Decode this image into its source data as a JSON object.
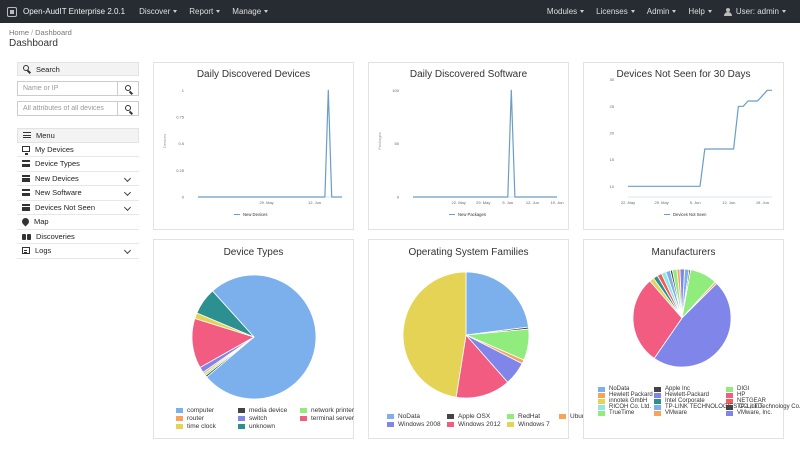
{
  "navbar": {
    "brand": "Open-AudIT Enterprise 2.0.1",
    "left": [
      "Discover",
      "Report",
      "Manage"
    ],
    "right": [
      "Modules",
      "Licenses",
      "Admin",
      "Help"
    ],
    "user": "User: admin"
  },
  "breadcrumb": {
    "home": "Home",
    "current": "Dashboard"
  },
  "page_title": "Dashboard",
  "sidebar": {
    "search_label": "Search",
    "name_placeholder": "Name or IP",
    "attr_placeholder": "All attributes of all devices",
    "menu_label": "Menu",
    "items": [
      {
        "label": "My Devices",
        "icon": "monitor-icon",
        "expandable": false
      },
      {
        "label": "Device Types",
        "icon": "server-icon",
        "expandable": false
      },
      {
        "label": "New Devices",
        "icon": "server-icon",
        "expandable": true
      },
      {
        "label": "New Software",
        "icon": "server-icon",
        "expandable": true
      },
      {
        "label": "Devices Not Seen",
        "icon": "server-icon",
        "expandable": true
      },
      {
        "label": "Map",
        "icon": "map-marker-icon",
        "expandable": false
      },
      {
        "label": "Discoveries",
        "icon": "binoculars-icon",
        "expandable": false
      },
      {
        "label": "Logs",
        "icon": "list-icon",
        "expandable": true
      }
    ]
  },
  "line_color": "#6a9ec5",
  "charts": [
    {
      "title": "Daily Discovered Devices",
      "chart_data": {
        "type": "line",
        "x": [
          "2017-05-09",
          "2017-05-14",
          "2017-05-19",
          "2017-05-24",
          "2017-05-29",
          "2017-06-03",
          "2017-06-08",
          "2017-06-12",
          "2017-06-15",
          "2017-06-16",
          "2017-06-17",
          "2017-06-20"
        ],
        "y": [
          0,
          0,
          0,
          0,
          0,
          0,
          0,
          0,
          0,
          1,
          0,
          0
        ],
        "yticks": [
          "0",
          "0.25",
          "0.5",
          "0.75",
          "1"
        ],
        "ylim": [
          0,
          1.05
        ],
        "xticks": [
          {
            "x": "2017-05-29",
            "label": "29. May"
          },
          {
            "x": "2017-06-12",
            "label": "12. Jun"
          }
        ],
        "ylabel": "Devices",
        "legend": "New Devices"
      }
    },
    {
      "title": "Daily Discovered Software",
      "chart_data": {
        "type": "line",
        "x": [
          "2017-05-09",
          "2017-05-14",
          "2017-05-19",
          "2017-05-24",
          "2017-05-29",
          "2017-06-03",
          "2017-06-05",
          "2017-06-06",
          "2017-06-07",
          "2017-06-12",
          "2017-06-16",
          "2017-06-19"
        ],
        "y": [
          0,
          0,
          0,
          0,
          0,
          0,
          0,
          100,
          0,
          0,
          0,
          0
        ],
        "yticks": [
          "0",
          "50",
          "100"
        ],
        "ylim": [
          0,
          105
        ],
        "xticks": [
          {
            "x": "2017-05-22",
            "label": "22. May"
          },
          {
            "x": "2017-05-29",
            "label": "29. May"
          },
          {
            "x": "2017-06-05",
            "label": "5. Jun"
          },
          {
            "x": "2017-06-12",
            "label": "12. Jun"
          },
          {
            "x": "2017-06-19",
            "label": "19. Jun"
          }
        ],
        "ylabel": "Packages",
        "legend": "New Packages"
      }
    },
    {
      "title": "Devices Not Seen for 30 Days",
      "chart_data": {
        "type": "line",
        "x": [
          "2017-05-22",
          "2017-05-25",
          "2017-05-28",
          "2017-05-31",
          "2017-06-03",
          "2017-06-06",
          "2017-06-07",
          "2017-06-10",
          "2017-06-13",
          "2017-06-14",
          "2017-06-15",
          "2017-06-16",
          "2017-06-17",
          "2017-06-18",
          "2017-06-19",
          "2017-06-20",
          "2017-06-21"
        ],
        "y": [
          10,
          10,
          10,
          10,
          10,
          10,
          17,
          17,
          17,
          25,
          25,
          26,
          26,
          26,
          27,
          28,
          28
        ],
        "yticks": [
          "10",
          "15",
          "20",
          "25",
          "30"
        ],
        "ylim": [
          8,
          29
        ],
        "xticks": [
          {
            "x": "2017-05-22",
            "label": "22. May"
          },
          {
            "x": "2017-05-29",
            "label": "29. May"
          },
          {
            "x": "2017-06-05",
            "label": "5. Jun"
          },
          {
            "x": "2017-06-12",
            "label": "12. Jun"
          },
          {
            "x": "2017-06-19",
            "label": "19. Jun"
          }
        ],
        "legend": "Devices Not Seen"
      }
    }
  ],
  "pies": [
    {
      "title": "Device Types",
      "chart_data": {
        "type": "pie",
        "slices": [
          {
            "name": "computer",
            "value": 75.5,
            "color": "#7cb0ec"
          },
          {
            "name": "media device",
            "value": 0.5,
            "color": "#434348"
          },
          {
            "name": "network printer",
            "value": 0.5,
            "color": "#90ed7d"
          },
          {
            "name": "router",
            "value": 0.5,
            "color": "#f7a35c"
          },
          {
            "name": "switch",
            "value": 1.5,
            "color": "#8085e9"
          },
          {
            "name": "terminal server",
            "value": 13,
            "color": "#f15c80"
          },
          {
            "name": "time clock",
            "value": 1.5,
            "color": "#e4d354"
          },
          {
            "name": "unknown",
            "value": 7,
            "color": "#2b908f"
          }
        ]
      }
    },
    {
      "title": "Operating System Families",
      "chart_data": {
        "type": "pie",
        "slices": [
          {
            "name": "NoData",
            "value": 23,
            "color": "#7cb0ec"
          },
          {
            "name": "Apple OSX",
            "value": 0.5,
            "color": "#434348"
          },
          {
            "name": "RedHat",
            "value": 8,
            "color": "#90ed7d"
          },
          {
            "name": "Ubuntu",
            "value": 1,
            "color": "#f7a35c"
          },
          {
            "name": "Windows 2008",
            "value": 6,
            "color": "#8085e9"
          },
          {
            "name": "Windows 2012",
            "value": 14,
            "color": "#f15c80"
          },
          {
            "name": "Windows 7",
            "value": 47.5,
            "color": "#e4d354"
          }
        ]
      }
    },
    {
      "title": "Manufacturers",
      "chart_data": {
        "type": "pie",
        "slices": [
          {
            "name": "NoData",
            "value": 1.5,
            "color": "#7cb0ec"
          },
          {
            "name": "Apple Inc",
            "value": 0.5,
            "color": "#434348"
          },
          {
            "name": "DIGI",
            "value": 9,
            "color": "#90ed7d"
          },
          {
            "name": "Hewlett Packard",
            "value": 0.7,
            "color": "#f7a35c"
          },
          {
            "name": "Hewlett-Packard",
            "value": 47,
            "color": "#8085e9"
          },
          {
            "name": "HP",
            "value": 29,
            "color": "#f15c80"
          },
          {
            "name": "innotek GmbH",
            "value": 1.5,
            "color": "#e4d354"
          },
          {
            "name": "Intel Corporate",
            "value": 1.5,
            "color": "#2b908f"
          },
          {
            "name": "NETGEAR",
            "value": 1.5,
            "color": "#f45b5b"
          },
          {
            "name": "RICOH Co. Ltd.",
            "value": 1.5,
            "color": "#91e8e1"
          },
          {
            "name": "TP-LINK TECHNOLOGIES CO.,LTD.",
            "value": 1.5,
            "color": "#7cb0ec"
          },
          {
            "name": "TP-Link Technology Co.,Ltd",
            "value": 0.7,
            "color": "#434348"
          },
          {
            "name": "TrueTime",
            "value": 1.5,
            "color": "#90ed7d"
          },
          {
            "name": "VMware",
            "value": 1,
            "color": "#f7a35c"
          },
          {
            "name": "VMware, Inc.",
            "value": 1.5,
            "color": "#8085e9"
          }
        ]
      }
    }
  ]
}
